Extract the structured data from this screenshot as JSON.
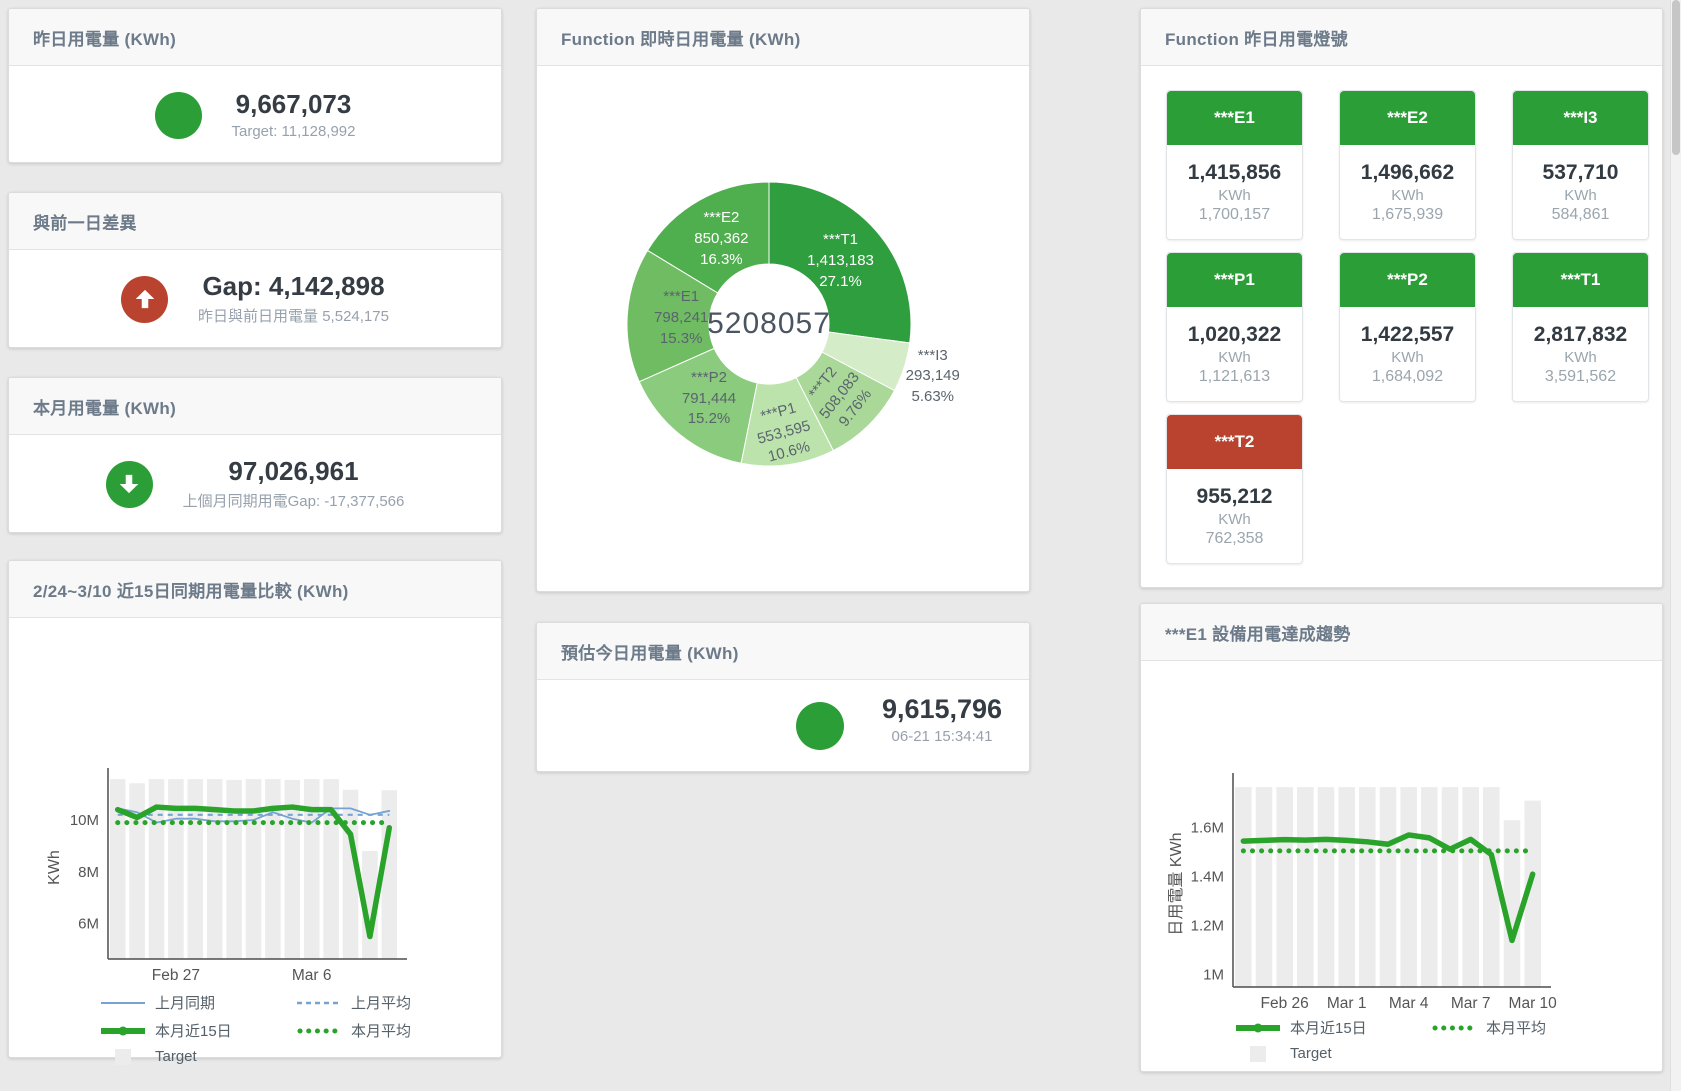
{
  "colors": {
    "green": "#2c9e38",
    "red": "#b9432f",
    "chart_green": "#2aa32b",
    "chart_blue": "#74a3d4",
    "bar_gray": "#ececec"
  },
  "cards": {
    "yesterday": {
      "title": "昨日用電量 (KWh)",
      "value": "9,667,073",
      "sub": "Target: 11,128,992",
      "icon": "circle",
      "icon_color": "#2c9e38"
    },
    "gap_prev_day": {
      "title": "與前一日差異",
      "value": "Gap: 4,142,898",
      "sub": "昨日與前日用電量 5,524,175",
      "icon": "up",
      "icon_color": "#b9432f"
    },
    "month": {
      "title": "本月用電量 (KWh)",
      "value": "97,026,961",
      "sub": "上個月同期用電Gap: -17,377,566",
      "icon": "down",
      "icon_color": "#2c9e38"
    },
    "estimate_today": {
      "title": "預估今日用電量 (KWh)",
      "value": "9,615,796",
      "sub": "06-21 15:34:41",
      "icon": "circle",
      "icon_color": "#2c9e38"
    },
    "compare15": {
      "title": "2/24~3/10 近15日同期用電量比較 (KWh)"
    },
    "donut": {
      "title": "Function 即時日用電量 (KWh)"
    },
    "lights": {
      "title": "Function 昨日用電燈號",
      "tiles": [
        {
          "name": "***E1",
          "value": "1,415,856",
          "unit": "KWh",
          "target": "1,700,157",
          "status": "green"
        },
        {
          "name": "***E2",
          "value": "1,496,662",
          "unit": "KWh",
          "target": "1,675,939",
          "status": "green"
        },
        {
          "name": "***I3",
          "value": "537,710",
          "unit": "KWh",
          "target": "584,861",
          "status": "green"
        },
        {
          "name": "***P1",
          "value": "1,020,322",
          "unit": "KWh",
          "target": "1,121,613",
          "status": "green"
        },
        {
          "name": "***P2",
          "value": "1,422,557",
          "unit": "KWh",
          "target": "1,684,092",
          "status": "green"
        },
        {
          "name": "***T1",
          "value": "2,817,832",
          "unit": "KWh",
          "target": "3,591,562",
          "status": "green"
        },
        {
          "name": "***T2",
          "value": "955,212",
          "unit": "KWh",
          "target": "762,358",
          "status": "red"
        }
      ]
    },
    "e1_trend": {
      "title": "***E1 設備用電達成趨勢"
    }
  },
  "chart_data": [
    {
      "type": "pie",
      "title": "Function 即時日用電量 (KWh)",
      "center_label": "5208057",
      "unit": "KWh",
      "slices": [
        {
          "name": "***T1",
          "value": 1413183,
          "value_label": "1,413,183",
          "pct": "27.1%",
          "color": "#2f9e3e",
          "text_color": "#ffffff",
          "rot": 0,
          "outside": false,
          "lr": 95
        },
        {
          "name": "***I3",
          "value": 293149,
          "value_label": "293,149",
          "pct": "5.63%",
          "color": "#d5ecc9",
          "text_color": "#5a646e",
          "rot": 0,
          "outside": true,
          "lr": 172
        },
        {
          "name": "***T2",
          "value": 508083,
          "value_label": "508,083",
          "pct": "9.76%",
          "color": "#a9d898",
          "text_color": "#5a646e",
          "rot": -52,
          "outside": false,
          "lr": 101
        },
        {
          "name": "***P1",
          "value": 553595,
          "value_label": "553,595",
          "pct": "10.6%",
          "color": "#bce3ab",
          "text_color": "#5a646e",
          "rot": -15,
          "outside": false,
          "lr": 110
        },
        {
          "name": "***P2",
          "value": 791444,
          "value_label": "791,444",
          "pct": "15.2%",
          "color": "#8bcb7d",
          "text_color": "#5a646e",
          "rot": 0,
          "outside": false,
          "lr": 96
        },
        {
          "name": "***E1",
          "value": 798241,
          "value_label": "798,241",
          "pct": "15.3%",
          "color": "#6fbc63",
          "text_color": "#5a646e",
          "rot": 0,
          "outside": false,
          "lr": 88
        },
        {
          "name": "***E2",
          "value": 850362,
          "value_label": "850,362",
          "pct": "16.3%",
          "color": "#4fae4e",
          "text_color": "#ffffff",
          "rot": 0,
          "outside": false,
          "lr": 97
        }
      ]
    },
    {
      "type": "line",
      "title": "2/24~3/10 近15日同期用電量比較 (KWh)",
      "ylabel": "KWh",
      "unit": "M KWh",
      "categories": [
        "2/24",
        "2/25",
        "2/26",
        "2/27",
        "2/28",
        "3/1",
        "3/2",
        "3/3",
        "3/4",
        "3/5",
        "3/6",
        "3/7",
        "3/8",
        "3/9",
        "3/10"
      ],
      "xticks": [
        {
          "i": 3,
          "label": "Feb 27"
        },
        {
          "i": 10,
          "label": "Mar 6"
        }
      ],
      "ylim": [
        4.63,
        11.7
      ],
      "yticks": [
        {
          "v": 6,
          "label": "6M"
        },
        {
          "v": 8,
          "label": "8M"
        },
        {
          "v": 10,
          "label": "10M"
        }
      ],
      "grid": false,
      "legend_position": "bottom",
      "target": {
        "name": "Target",
        "color": "#ececec",
        "values": [
          11.58,
          11.42,
          11.58,
          11.58,
          11.58,
          11.58,
          11.55,
          11.58,
          11.58,
          11.55,
          11.58,
          11.58,
          11.17,
          8.8,
          11.15
        ]
      },
      "series": [
        {
          "name": "上月同期",
          "color": "#74a3d4",
          "width": 1.8,
          "values": [
            10.45,
            10.3,
            9.9,
            10.05,
            10.05,
            9.95,
            9.95,
            10.0,
            10.3,
            10.05,
            9.9,
            10.45,
            10.45,
            10.2,
            10.35
          ]
        },
        {
          "name": "上月平均",
          "color": "#74a3d4",
          "width": 2.2,
          "dash": "5 5",
          "cap": "butt",
          "value": 10.2
        },
        {
          "name": "本月近15日",
          "color": "#2aa32b",
          "width": 5.5,
          "values": [
            10.4,
            10.1,
            10.5,
            10.45,
            10.45,
            10.4,
            10.35,
            10.35,
            10.45,
            10.5,
            10.4,
            10.4,
            9.45,
            5.5,
            9.7
          ]
        },
        {
          "name": "本月平均",
          "color": "#2aa32b",
          "width": 5,
          "dash": "0.1 9",
          "value": 9.9
        }
      ],
      "legend": [
        [
          {
            "label": "上月同期",
            "swatch": "line",
            "color": "#74a3d4"
          },
          {
            "label": "上月平均",
            "swatch": "dash",
            "color": "#74a3d4"
          }
        ],
        [
          {
            "label": "本月近15日",
            "swatch": "thick",
            "color": "#2aa32b"
          },
          {
            "label": "本月平均",
            "swatch": "dots",
            "color": "#2aa32b"
          }
        ],
        [
          {
            "label": "Target",
            "swatch": "box",
            "color": "#ececec"
          }
        ]
      ]
    },
    {
      "type": "line",
      "title": "***E1 設備用電達成趨勢",
      "ylabel": "日用電量 KWh",
      "unit": "M KWh",
      "categories": [
        "2/24",
        "2/25",
        "2/26",
        "2/27",
        "2/28",
        "3/1",
        "3/2",
        "3/3",
        "3/4",
        "3/5",
        "3/6",
        "3/7",
        "3/8",
        "3/9",
        "3/10"
      ],
      "xticks": [
        {
          "i": 2,
          "label": "Feb 26"
        },
        {
          "i": 5,
          "label": "Mar 1"
        },
        {
          "i": 8,
          "label": "Mar 4"
        },
        {
          "i": 11,
          "label": "Mar 7"
        },
        {
          "i": 14,
          "label": "Mar 10"
        }
      ],
      "ylim": [
        0.95,
        1.79
      ],
      "yticks": [
        {
          "v": 1,
          "label": "1M"
        },
        {
          "v": 1.2,
          "label": "1.2M"
        },
        {
          "v": 1.4,
          "label": "1.4M"
        },
        {
          "v": 1.6,
          "label": "1.6M"
        }
      ],
      "grid": false,
      "legend_position": "bottom",
      "target": {
        "name": "Target",
        "color": "#ececec",
        "values": [
          1.765,
          1.765,
          1.765,
          1.765,
          1.765,
          1.765,
          1.765,
          1.765,
          1.765,
          1.765,
          1.765,
          1.765,
          1.765,
          1.63,
          1.71
        ]
      },
      "series": [
        {
          "name": "本月近15日",
          "color": "#2aa32b",
          "width": 5.5,
          "values": [
            1.545,
            1.548,
            1.551,
            1.549,
            1.552,
            1.548,
            1.542,
            1.532,
            1.57,
            1.558,
            1.512,
            1.552,
            1.49,
            1.14,
            1.41
          ]
        },
        {
          "name": "本月平均",
          "color": "#2aa32b",
          "width": 5,
          "dash": "0.1 9",
          "value": 1.505
        }
      ],
      "legend": [
        [
          {
            "label": "本月近15日",
            "swatch": "thick",
            "color": "#2aa32b"
          },
          {
            "label": "本月平均",
            "swatch": "dots",
            "color": "#2aa32b"
          }
        ],
        [
          {
            "label": "Target",
            "swatch": "box",
            "color": "#ececec"
          }
        ]
      ]
    }
  ]
}
